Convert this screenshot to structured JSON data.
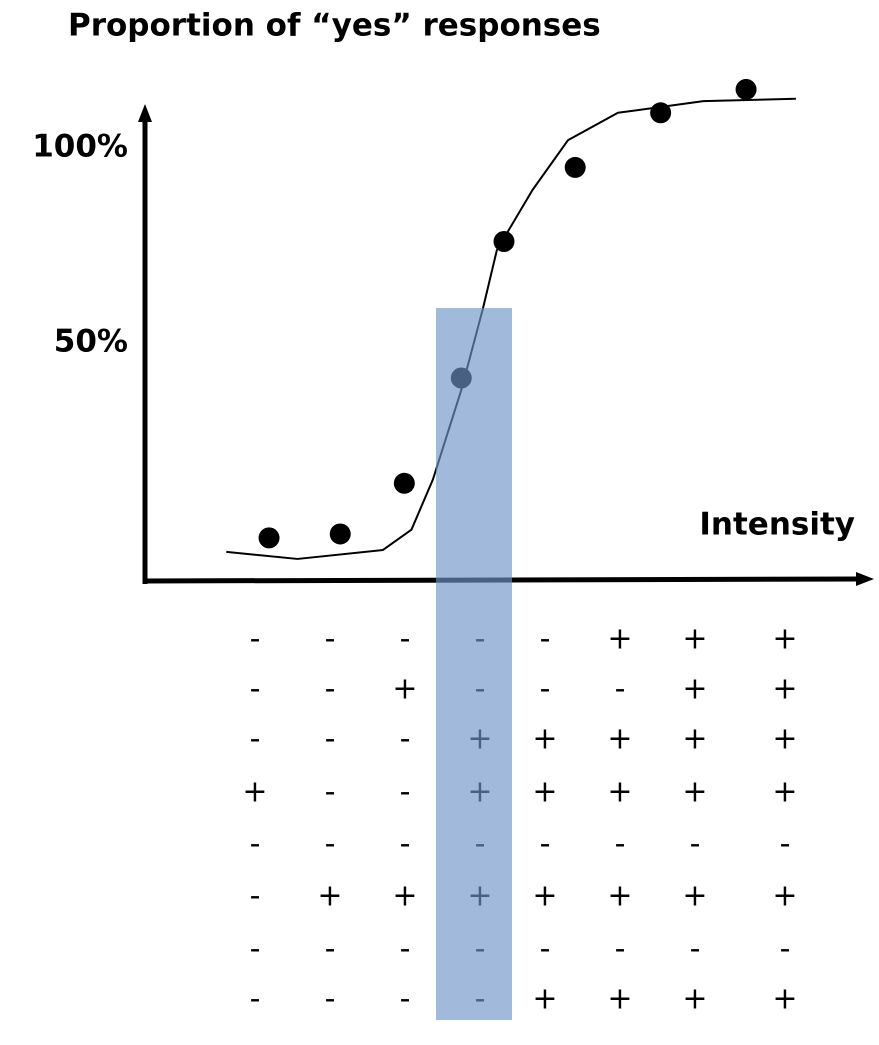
{
  "chart_data": {
    "type": "scatter",
    "title": "Proportion of “yes” responses",
    "x_label": "Intensity",
    "xlim": [
      0,
      10
    ],
    "ylim": [
      -10.8,
      111
    ],
    "yticks": [
      {
        "value": 50,
        "label": "50%"
      },
      {
        "value": 100,
        "label": "100%"
      }
    ],
    "series": [
      {
        "type": "scatter",
        "color": "#000000",
        "x": [
          1.7,
          2.7,
          3.6,
          4.4,
          5.0,
          6.0,
          7.2,
          8.4
        ],
        "values": [
          0,
          1,
          14,
          41,
          76,
          95,
          109,
          115
        ]
      },
      {
        "type": "line",
        "color": "#000000",
        "x": [
          1.1,
          2.1,
          3.3,
          3.7,
          4.0,
          4.4,
          4.7,
          4.9,
          5.4,
          5.9,
          6.6,
          7.8,
          9.1
        ],
        "values": [
          -3.6,
          -5.4,
          -3.1,
          2.1,
          14.9,
          37.9,
          58.5,
          73.8,
          89.2,
          102,
          109,
          112,
          112.6
        ]
      }
    ]
  },
  "responses": [
    [
      "-",
      "-",
      "-",
      "-",
      "-",
      "+",
      "+",
      "+"
    ],
    [
      "-",
      "-",
      "+",
      "-",
      "-",
      "-",
      "+",
      "+"
    ],
    [
      "-",
      "-",
      "-",
      "+",
      "+",
      "+",
      "+",
      "+"
    ],
    [
      "+",
      "-",
      "-",
      "+",
      "+",
      "+",
      "+",
      "+"
    ],
    [
      "-",
      "-",
      "-",
      "-",
      "-",
      "-",
      "-",
      "-"
    ],
    [
      "-",
      "+",
      "+",
      "+",
      "+",
      "+",
      "+",
      "+"
    ],
    [
      "-",
      "-",
      "-",
      "-",
      "-",
      "-",
      "-",
      "-"
    ],
    [
      "-",
      "-",
      "-",
      "-",
      "+",
      "+",
      "+",
      "+"
    ]
  ]
}
